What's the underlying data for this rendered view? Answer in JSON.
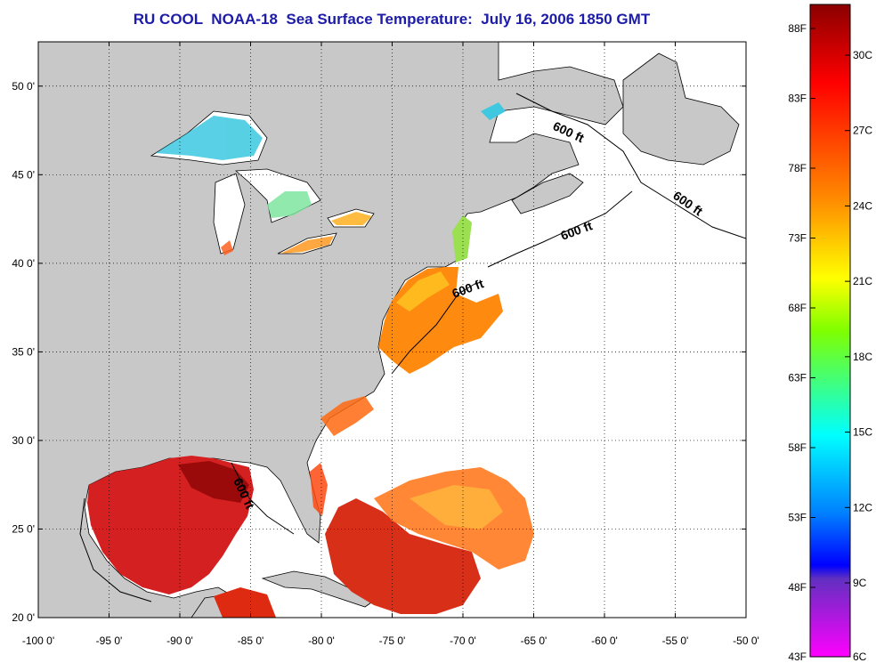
{
  "title": "RU COOL  NOAA-18  Sea Surface Temperature:  July 16, 2006 1850 GMT",
  "axes": {
    "x_ticks": [
      "-100 0'",
      "-95 0'",
      "-90 0'",
      "-85 0'",
      "-80 0'",
      "-75 0'",
      "-70 0'",
      "-65 0'",
      "-60 0'",
      "-55 0'",
      "-50 0'"
    ],
    "y_ticks": [
      "50 0'",
      "45 0'",
      "40 0'",
      "35 0'",
      "30 0'",
      "25 0'",
      "20 0'"
    ],
    "lon_range": [
      -100,
      -50
    ],
    "lat_range": [
      20,
      52.5
    ],
    "grid": "dotted"
  },
  "isobath_labels": [
    "600 ft",
    "600 ft",
    "600 ft",
    "600 ft",
    "600 ft"
  ],
  "colorbar": {
    "fahrenheit": [
      "88F",
      "83F",
      "78F",
      "73F",
      "68F",
      "63F",
      "58F",
      "53F",
      "48F",
      "43F"
    ],
    "celsius": [
      "30C",
      "27C",
      "24C",
      "21C",
      "18C",
      "15C",
      "12C",
      "9C",
      "6C"
    ],
    "gradient": [
      "#8b0000",
      "#ff0000",
      "#ff8c00",
      "#ffff00",
      "#7fff00",
      "#00ffff",
      "#0080ff",
      "#0000ff",
      "#ff00ff"
    ]
  },
  "colors": {
    "land": "#c8c8c8",
    "ocean_no_data": "#ffffff",
    "title": "#1c1ca8"
  }
}
